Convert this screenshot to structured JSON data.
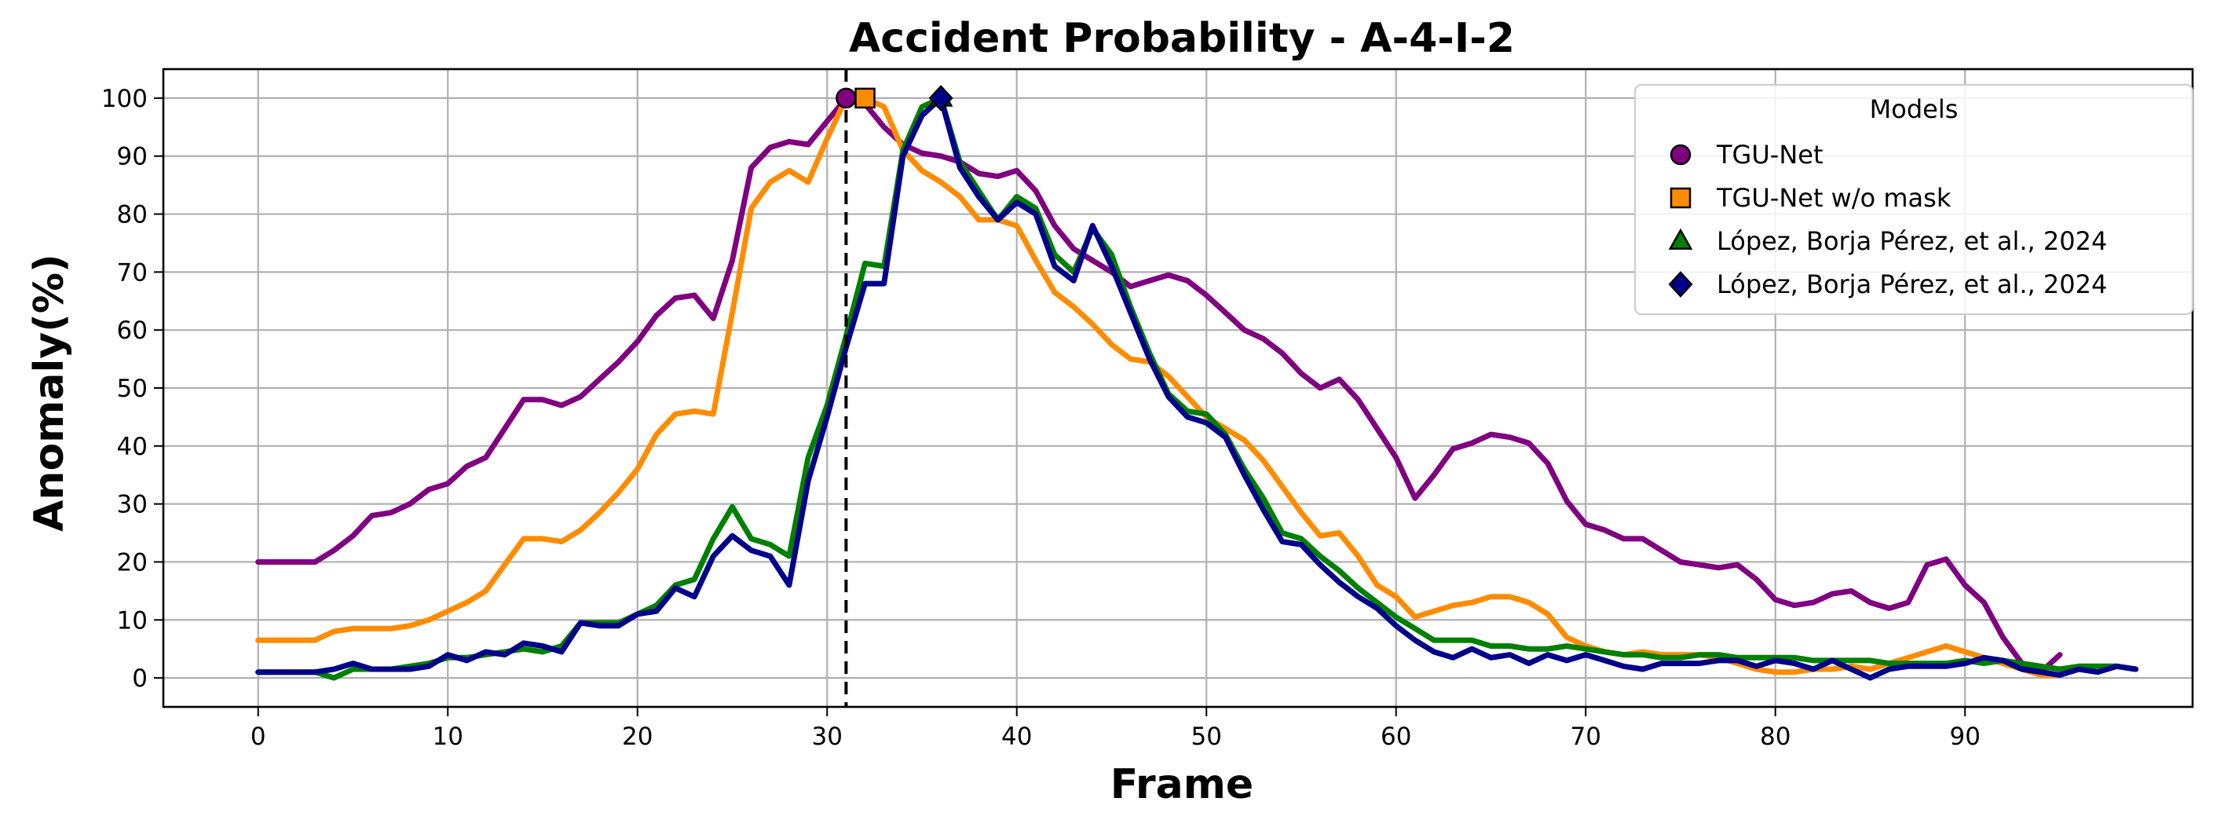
{
  "chart_data": {
    "type": "line",
    "title": "Accident Probability - A-4-I-2",
    "xlabel": "Frame",
    "ylabel": "Anomaly(%)",
    "xlim": [
      -5,
      102
    ],
    "ylim": [
      -5,
      105
    ],
    "xticks": [
      0,
      10,
      20,
      30,
      40,
      50,
      60,
      70,
      80,
      90
    ],
    "yticks": [
      0,
      10,
      20,
      30,
      40,
      50,
      60,
      70,
      80,
      90,
      100
    ],
    "grid": true,
    "legend": {
      "title": "Models",
      "position": "top-right"
    },
    "vline_x": 31,
    "series": [
      {
        "name": "TGU-Net",
        "color": "#800080",
        "marker": "circle",
        "peak": [
          31,
          100
        ],
        "x": [
          0,
          1,
          2,
          3,
          4,
          5,
          6,
          7,
          8,
          9,
          10,
          11,
          12,
          13,
          14,
          15,
          16,
          17,
          18,
          19,
          20,
          21,
          22,
          23,
          24,
          25,
          26,
          27,
          28,
          29,
          30,
          31,
          32,
          33,
          34,
          35,
          36,
          37,
          38,
          39,
          40,
          41,
          42,
          43,
          44,
          45,
          46,
          47,
          48,
          49,
          50,
          51,
          52,
          53,
          54,
          55,
          56,
          57,
          58,
          59,
          60,
          61,
          62,
          63,
          64,
          65,
          66,
          67,
          68,
          69,
          70,
          71,
          72,
          73,
          74,
          75,
          76,
          77,
          78,
          79,
          80,
          81,
          82,
          83,
          84,
          85,
          86,
          87,
          88,
          89,
          90,
          91,
          92,
          93,
          94,
          95
        ],
        "y": [
          20,
          20,
          20,
          20,
          22,
          24.5,
          28,
          28.5,
          30,
          32.5,
          33.5,
          36.5,
          38,
          43,
          48,
          48,
          47,
          48.5,
          51.5,
          54.5,
          58,
          62.5,
          65.5,
          66,
          62,
          72,
          88,
          91.5,
          92.5,
          92,
          96,
          100,
          99,
          95,
          92,
          90.5,
          90,
          89,
          87,
          86.5,
          87.5,
          84,
          78,
          74,
          72,
          70,
          67.5,
          68.5,
          69.5,
          68.5,
          66,
          63,
          60,
          58.5,
          56,
          52.5,
          50,
          51.5,
          48,
          43,
          38,
          31,
          35,
          39.5,
          40.5,
          42,
          41.5,
          40.5,
          37,
          30.5,
          26.5,
          25.5,
          24,
          24,
          22,
          20,
          19.5,
          19,
          19.5,
          17,
          13.5,
          12.5,
          13,
          14.5,
          15,
          13,
          12,
          13,
          19.5,
          20.5,
          16,
          13,
          7,
          2.5,
          1,
          4
        ]
      },
      {
        "name": "TGU-Net w/o mask",
        "color": "#ff8c00",
        "marker": "square",
        "peak": [
          32,
          100
        ],
        "x": [
          0,
          1,
          2,
          3,
          4,
          5,
          6,
          7,
          8,
          9,
          10,
          11,
          12,
          13,
          14,
          15,
          16,
          17,
          18,
          19,
          20,
          21,
          22,
          23,
          24,
          25,
          26,
          27,
          28,
          29,
          30,
          31,
          32,
          33,
          34,
          35,
          36,
          37,
          38,
          39,
          40,
          41,
          42,
          43,
          44,
          45,
          46,
          47,
          48,
          49,
          50,
          51,
          52,
          53,
          54,
          55,
          56,
          57,
          58,
          59,
          60,
          61,
          62,
          63,
          64,
          65,
          66,
          67,
          68,
          69,
          70,
          71,
          72,
          73,
          74,
          75,
          76,
          77,
          78,
          79,
          80,
          81,
          82,
          83,
          84,
          85,
          86,
          87,
          88,
          89,
          90,
          91,
          92,
          93,
          94,
          95
        ],
        "y": [
          6.5,
          6.5,
          6.5,
          6.5,
          8,
          8.5,
          8.5,
          8.5,
          9,
          10,
          11.5,
          13,
          15,
          19.5,
          24,
          24,
          23.5,
          25.5,
          28.5,
          32,
          36,
          42,
          45.5,
          46,
          45.5,
          63,
          81,
          85.5,
          87.5,
          85.5,
          93,
          100,
          100,
          98.5,
          91,
          87.5,
          85.5,
          83,
          79,
          79,
          78,
          72,
          66.5,
          64,
          61,
          57.5,
          55,
          54.5,
          52,
          48.5,
          45,
          43,
          41,
          37.5,
          33,
          28.5,
          24.5,
          25,
          21,
          16,
          14,
          10.5,
          11.5,
          12.5,
          13,
          14,
          14,
          13,
          11,
          7,
          5.5,
          4.5,
          4,
          4.5,
          4,
          4,
          4,
          3.5,
          2.5,
          1.5,
          1,
          1,
          1.5,
          1.5,
          2,
          1.5,
          2.5,
          3.5,
          4.5,
          5.5,
          4.5,
          3.5,
          2.5,
          1.5,
          0.5,
          0.5
        ]
      },
      {
        "name": "López, Borja Pérez, et al., 2024",
        "color": "#008000",
        "marker": "triangle",
        "peak": [
          36,
          100
        ],
        "x": [
          0,
          1,
          2,
          3,
          4,
          5,
          6,
          7,
          8,
          9,
          10,
          11,
          12,
          13,
          14,
          15,
          16,
          17,
          18,
          19,
          20,
          21,
          22,
          23,
          24,
          25,
          26,
          27,
          28,
          29,
          30,
          31,
          32,
          33,
          34,
          35,
          36,
          37,
          38,
          39,
          40,
          41,
          42,
          43,
          44,
          45,
          46,
          47,
          48,
          49,
          50,
          51,
          52,
          53,
          54,
          55,
          56,
          57,
          58,
          59,
          60,
          61,
          62,
          63,
          64,
          65,
          66,
          67,
          68,
          69,
          70,
          71,
          72,
          73,
          74,
          75,
          76,
          77,
          78,
          79,
          80,
          81,
          82,
          83,
          84,
          85,
          86,
          87,
          88,
          89,
          90,
          91,
          92,
          93,
          94,
          95,
          96,
          97,
          98,
          99
        ],
        "y": [
          1,
          1,
          1,
          1,
          0,
          1.5,
          1.5,
          1.5,
          2,
          2.5,
          3.5,
          3.5,
          4,
          4.5,
          5,
          4.5,
          5.5,
          9.5,
          9.5,
          9.5,
          11,
          12.5,
          16,
          17,
          24,
          29.5,
          24,
          23,
          21,
          38,
          47,
          59,
          71.5,
          71,
          91,
          98.5,
          100,
          89,
          84,
          79,
          83,
          81,
          73,
          70,
          77.5,
          73,
          64,
          56,
          49,
          46,
          45.5,
          42,
          36,
          31,
          25,
          24,
          21,
          18.5,
          15.5,
          13,
          10.5,
          8.5,
          6.5,
          6.5,
          6.5,
          5.5,
          5.5,
          5,
          5,
          5.5,
          5,
          4.5,
          4,
          4,
          3.5,
          3.5,
          4,
          4,
          3.5,
          3.5,
          3.5,
          3.5,
          3,
          3,
          3,
          3,
          2.5,
          2.5,
          2.5,
          2.5,
          3,
          2.5,
          3,
          2.5,
          2,
          1.5,
          2,
          2,
          2,
          1.5
        ]
      },
      {
        "name": "López, Borja Pérez, et al., 2024",
        "color": "#00008b",
        "marker": "diamond",
        "peak": [
          36,
          100
        ],
        "x": [
          0,
          1,
          2,
          3,
          4,
          5,
          6,
          7,
          8,
          9,
          10,
          11,
          12,
          13,
          14,
          15,
          16,
          17,
          18,
          19,
          20,
          21,
          22,
          23,
          24,
          25,
          26,
          27,
          28,
          29,
          30,
          31,
          32,
          33,
          34,
          35,
          36,
          37,
          38,
          39,
          40,
          41,
          42,
          43,
          44,
          45,
          46,
          47,
          48,
          49,
          50,
          51,
          52,
          53,
          54,
          55,
          56,
          57,
          58,
          59,
          60,
          61,
          62,
          63,
          64,
          65,
          66,
          67,
          68,
          69,
          70,
          71,
          72,
          73,
          74,
          75,
          76,
          77,
          78,
          79,
          80,
          81,
          82,
          83,
          84,
          85,
          86,
          87,
          88,
          89,
          90,
          91,
          92,
          93,
          94,
          95,
          96,
          97,
          98,
          99
        ],
        "y": [
          1,
          1,
          1,
          1,
          1.5,
          2.5,
          1.5,
          1.5,
          1.5,
          2,
          4,
          3,
          4.5,
          4,
          6,
          5.5,
          4.5,
          9.5,
          9,
          9,
          11,
          11.5,
          15.5,
          14,
          21,
          24.5,
          22,
          21,
          16,
          34,
          45,
          57,
          68,
          68,
          90,
          97,
          100,
          88,
          83,
          79,
          82,
          80,
          71,
          68.5,
          78,
          71,
          63,
          55,
          48.5,
          45,
          44,
          41.5,
          35,
          29,
          23.5,
          23,
          19.5,
          16.5,
          14,
          12,
          9,
          6.5,
          4.5,
          3.5,
          5,
          3.5,
          4,
          2.5,
          4,
          3,
          4,
          3,
          2,
          1.5,
          2.5,
          2.5,
          2.5,
          3,
          3,
          2,
          3,
          2.5,
          1.5,
          3,
          1.5,
          0,
          1.5,
          2,
          2,
          2,
          2.5,
          3.5,
          3,
          1.5,
          1,
          0.5,
          1.5,
          1,
          2,
          1.5
        ]
      }
    ]
  }
}
